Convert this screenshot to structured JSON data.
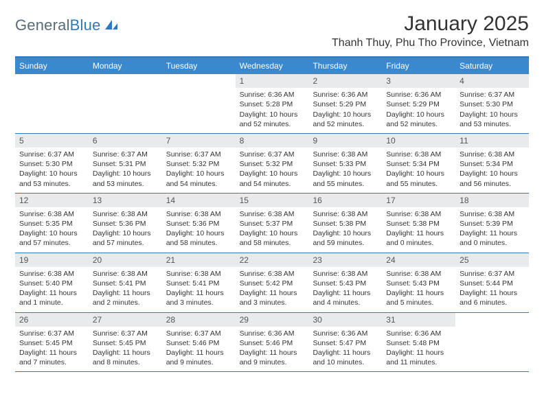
{
  "logo": {
    "word1": "General",
    "word2": "Blue",
    "text_color": "#5a6b78",
    "accent_color": "#2d79bf"
  },
  "title": "January 2025",
  "location": "Thanh Thuy, Phu Tho Province, Vietnam",
  "colors": {
    "header_bg": "#3a89cf",
    "header_text": "#ffffff",
    "border": "#2d79bf",
    "daynum_bg": "#e9eaec",
    "body_text": "#333333"
  },
  "weekdays": [
    "Sunday",
    "Monday",
    "Tuesday",
    "Wednesday",
    "Thursday",
    "Friday",
    "Saturday"
  ],
  "weeks": [
    [
      null,
      null,
      null,
      {
        "n": "1",
        "sr": "6:36 AM",
        "ss": "5:28 PM",
        "dl": "10 hours and 52 minutes."
      },
      {
        "n": "2",
        "sr": "6:36 AM",
        "ss": "5:29 PM",
        "dl": "10 hours and 52 minutes."
      },
      {
        "n": "3",
        "sr": "6:36 AM",
        "ss": "5:29 PM",
        "dl": "10 hours and 52 minutes."
      },
      {
        "n": "4",
        "sr": "6:37 AM",
        "ss": "5:30 PM",
        "dl": "10 hours and 53 minutes."
      }
    ],
    [
      {
        "n": "5",
        "sr": "6:37 AM",
        "ss": "5:30 PM",
        "dl": "10 hours and 53 minutes."
      },
      {
        "n": "6",
        "sr": "6:37 AM",
        "ss": "5:31 PM",
        "dl": "10 hours and 53 minutes."
      },
      {
        "n": "7",
        "sr": "6:37 AM",
        "ss": "5:32 PM",
        "dl": "10 hours and 54 minutes."
      },
      {
        "n": "8",
        "sr": "6:37 AM",
        "ss": "5:32 PM",
        "dl": "10 hours and 54 minutes."
      },
      {
        "n": "9",
        "sr": "6:38 AM",
        "ss": "5:33 PM",
        "dl": "10 hours and 55 minutes."
      },
      {
        "n": "10",
        "sr": "6:38 AM",
        "ss": "5:34 PM",
        "dl": "10 hours and 55 minutes."
      },
      {
        "n": "11",
        "sr": "6:38 AM",
        "ss": "5:34 PM",
        "dl": "10 hours and 56 minutes."
      }
    ],
    [
      {
        "n": "12",
        "sr": "6:38 AM",
        "ss": "5:35 PM",
        "dl": "10 hours and 57 minutes."
      },
      {
        "n": "13",
        "sr": "6:38 AM",
        "ss": "5:36 PM",
        "dl": "10 hours and 57 minutes."
      },
      {
        "n": "14",
        "sr": "6:38 AM",
        "ss": "5:36 PM",
        "dl": "10 hours and 58 minutes."
      },
      {
        "n": "15",
        "sr": "6:38 AM",
        "ss": "5:37 PM",
        "dl": "10 hours and 58 minutes."
      },
      {
        "n": "16",
        "sr": "6:38 AM",
        "ss": "5:38 PM",
        "dl": "10 hours and 59 minutes."
      },
      {
        "n": "17",
        "sr": "6:38 AM",
        "ss": "5:38 PM",
        "dl": "11 hours and 0 minutes."
      },
      {
        "n": "18",
        "sr": "6:38 AM",
        "ss": "5:39 PM",
        "dl": "11 hours and 0 minutes."
      }
    ],
    [
      {
        "n": "19",
        "sr": "6:38 AM",
        "ss": "5:40 PM",
        "dl": "11 hours and 1 minute."
      },
      {
        "n": "20",
        "sr": "6:38 AM",
        "ss": "5:41 PM",
        "dl": "11 hours and 2 minutes."
      },
      {
        "n": "21",
        "sr": "6:38 AM",
        "ss": "5:41 PM",
        "dl": "11 hours and 3 minutes."
      },
      {
        "n": "22",
        "sr": "6:38 AM",
        "ss": "5:42 PM",
        "dl": "11 hours and 3 minutes."
      },
      {
        "n": "23",
        "sr": "6:38 AM",
        "ss": "5:43 PM",
        "dl": "11 hours and 4 minutes."
      },
      {
        "n": "24",
        "sr": "6:38 AM",
        "ss": "5:43 PM",
        "dl": "11 hours and 5 minutes."
      },
      {
        "n": "25",
        "sr": "6:37 AM",
        "ss": "5:44 PM",
        "dl": "11 hours and 6 minutes."
      }
    ],
    [
      {
        "n": "26",
        "sr": "6:37 AM",
        "ss": "5:45 PM",
        "dl": "11 hours and 7 minutes."
      },
      {
        "n": "27",
        "sr": "6:37 AM",
        "ss": "5:45 PM",
        "dl": "11 hours and 8 minutes."
      },
      {
        "n": "28",
        "sr": "6:37 AM",
        "ss": "5:46 PM",
        "dl": "11 hours and 9 minutes."
      },
      {
        "n": "29",
        "sr": "6:36 AM",
        "ss": "5:46 PM",
        "dl": "11 hours and 9 minutes."
      },
      {
        "n": "30",
        "sr": "6:36 AM",
        "ss": "5:47 PM",
        "dl": "11 hours and 10 minutes."
      },
      {
        "n": "31",
        "sr": "6:36 AM",
        "ss": "5:48 PM",
        "dl": "11 hours and 11 minutes."
      },
      null
    ]
  ],
  "labels": {
    "sunrise": "Sunrise: ",
    "sunset": "Sunset: ",
    "daylight": "Daylight: "
  }
}
